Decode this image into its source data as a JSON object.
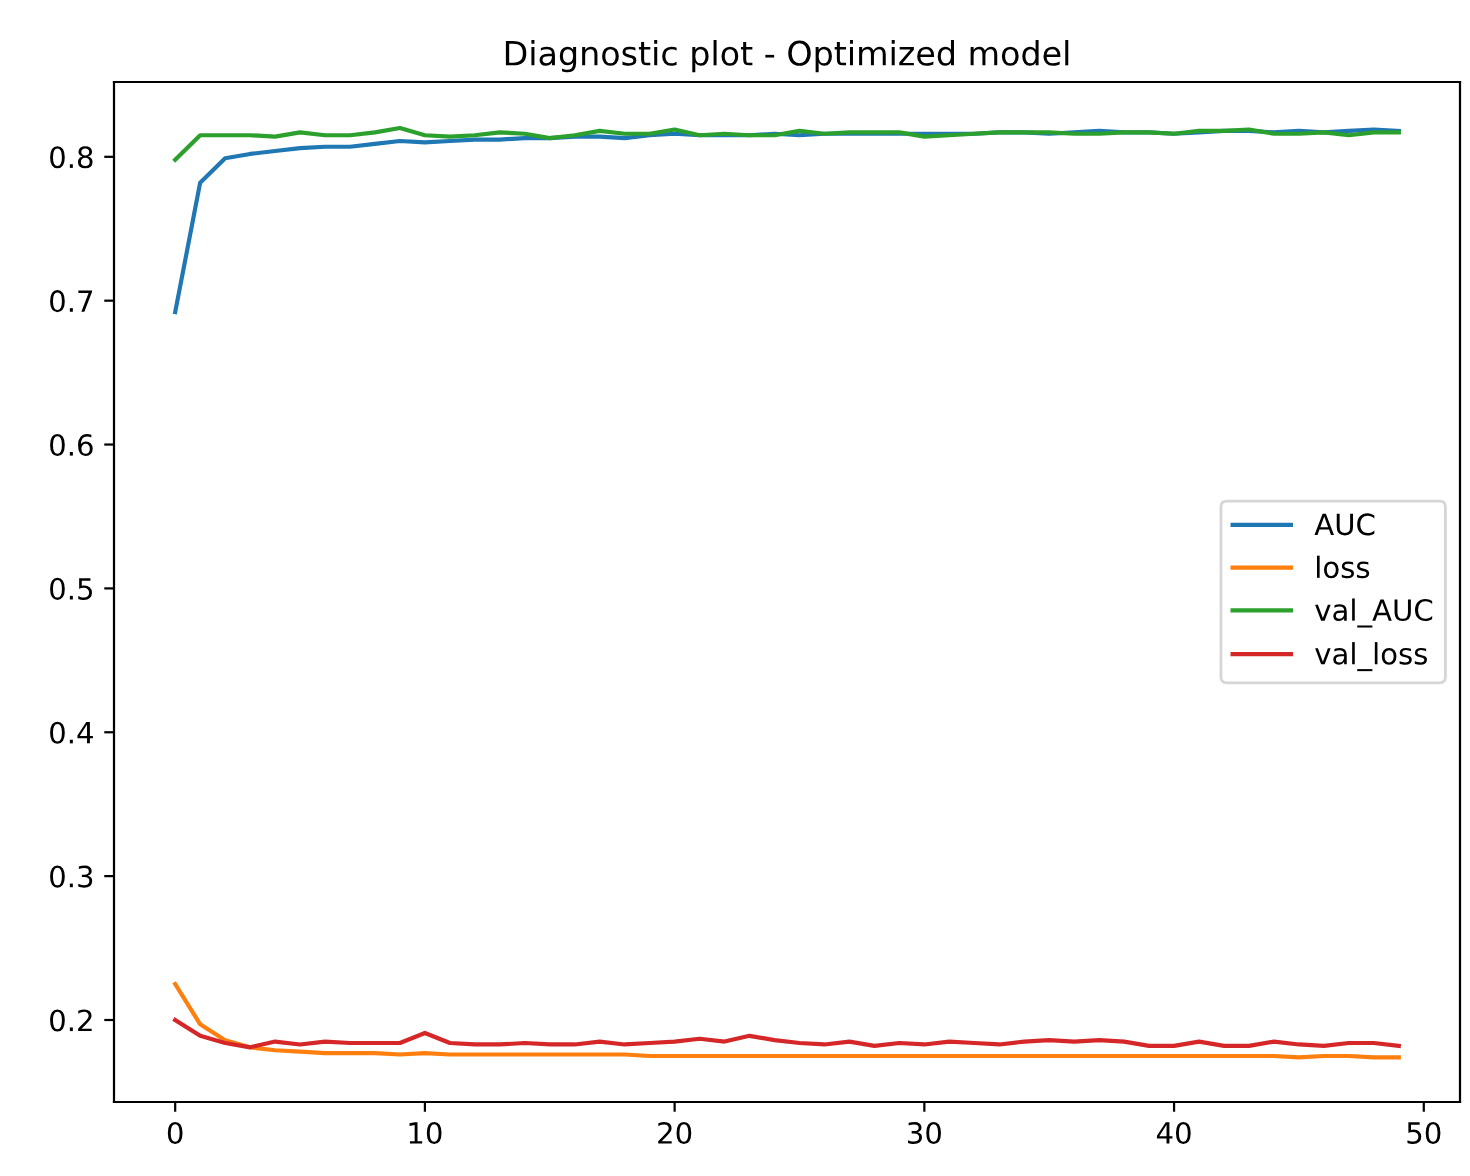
{
  "chart_data": {
    "type": "line",
    "title": "Diagnostic plot - Optimized model",
    "x": [
      0,
      1,
      2,
      3,
      4,
      5,
      6,
      7,
      8,
      9,
      10,
      11,
      12,
      13,
      14,
      15,
      16,
      17,
      18,
      19,
      20,
      21,
      22,
      23,
      24,
      25,
      26,
      27,
      28,
      29,
      30,
      31,
      32,
      33,
      34,
      35,
      36,
      37,
      38,
      39,
      40,
      41,
      42,
      43,
      44,
      45,
      46,
      47,
      48,
      49
    ],
    "series": [
      {
        "name": "AUC",
        "color": "#1f77b4",
        "values": [
          0.692,
          0.782,
          0.799,
          0.802,
          0.804,
          0.806,
          0.807,
          0.807,
          0.809,
          0.811,
          0.81,
          0.811,
          0.812,
          0.812,
          0.813,
          0.813,
          0.814,
          0.814,
          0.813,
          0.815,
          0.816,
          0.815,
          0.815,
          0.815,
          0.816,
          0.815,
          0.816,
          0.816,
          0.816,
          0.816,
          0.816,
          0.816,
          0.816,
          0.817,
          0.817,
          0.816,
          0.817,
          0.818,
          0.817,
          0.817,
          0.816,
          0.817,
          0.818,
          0.818,
          0.817,
          0.818,
          0.817,
          0.818,
          0.819,
          0.818
        ]
      },
      {
        "name": "loss",
        "color": "#ff7f0e",
        "values": [
          0.225,
          0.197,
          0.186,
          0.181,
          0.179,
          0.178,
          0.177,
          0.177,
          0.177,
          0.176,
          0.177,
          0.176,
          0.176,
          0.176,
          0.176,
          0.176,
          0.176,
          0.176,
          0.176,
          0.175,
          0.175,
          0.175,
          0.175,
          0.175,
          0.175,
          0.175,
          0.175,
          0.175,
          0.175,
          0.175,
          0.175,
          0.175,
          0.175,
          0.175,
          0.175,
          0.175,
          0.175,
          0.175,
          0.175,
          0.175,
          0.175,
          0.175,
          0.175,
          0.175,
          0.175,
          0.174,
          0.175,
          0.175,
          0.174,
          0.174
        ]
      },
      {
        "name": "val_AUC",
        "color": "#2ca02c",
        "values": [
          0.798,
          0.815,
          0.815,
          0.815,
          0.814,
          0.817,
          0.815,
          0.815,
          0.817,
          0.82,
          0.815,
          0.814,
          0.815,
          0.817,
          0.816,
          0.813,
          0.815,
          0.818,
          0.816,
          0.816,
          0.819,
          0.815,
          0.816,
          0.815,
          0.815,
          0.818,
          0.816,
          0.817,
          0.817,
          0.817,
          0.814,
          0.815,
          0.816,
          0.817,
          0.817,
          0.817,
          0.816,
          0.816,
          0.817,
          0.817,
          0.816,
          0.818,
          0.818,
          0.819,
          0.816,
          0.816,
          0.817,
          0.815,
          0.817,
          0.817
        ]
      },
      {
        "name": "val_loss",
        "color": "#d62728",
        "values": [
          0.2,
          0.189,
          0.184,
          0.181,
          0.185,
          0.183,
          0.185,
          0.184,
          0.184,
          0.184,
          0.191,
          0.184,
          0.183,
          0.183,
          0.184,
          0.183,
          0.183,
          0.185,
          0.183,
          0.184,
          0.185,
          0.187,
          0.185,
          0.189,
          0.186,
          0.184,
          0.183,
          0.185,
          0.182,
          0.184,
          0.183,
          0.185,
          0.184,
          0.183,
          0.185,
          0.186,
          0.185,
          0.186,
          0.185,
          0.182,
          0.182,
          0.185,
          0.182,
          0.182,
          0.185,
          0.183,
          0.182,
          0.184,
          0.184,
          0.182
        ]
      }
    ],
    "xlim": [
      -2.45,
      51.45
    ],
    "ylim": [
      0.143,
      0.852
    ],
    "xticks": [
      0,
      10,
      20,
      30,
      40,
      50
    ],
    "yticks": [
      0.2,
      0.3,
      0.4,
      0.5,
      0.6,
      0.7,
      0.8
    ],
    "legend": "right"
  }
}
